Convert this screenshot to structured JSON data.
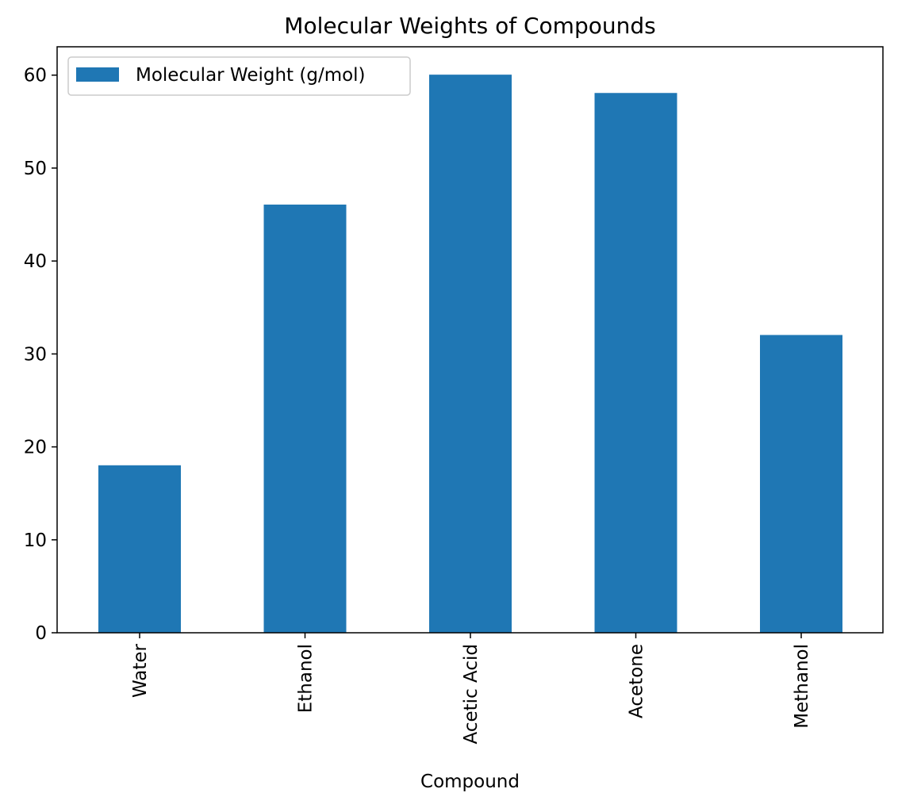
{
  "chart_data": {
    "type": "bar",
    "title": "Molecular Weights of Compounds",
    "xlabel": "Compound",
    "ylabel": "",
    "categories": [
      "Water",
      "Ethanol",
      "Acetic Acid",
      "Acetone",
      "Methanol"
    ],
    "series": [
      {
        "name": "Molecular Weight (g/mol)",
        "values": [
          18.02,
          46.07,
          60.05,
          58.08,
          32.04
        ],
        "color": "#1f77b4"
      }
    ],
    "ylim": [
      0,
      63.05
    ],
    "yticks": [
      0,
      10,
      20,
      30,
      40,
      50,
      60
    ],
    "grid": false,
    "legend_position": "top-left"
  }
}
